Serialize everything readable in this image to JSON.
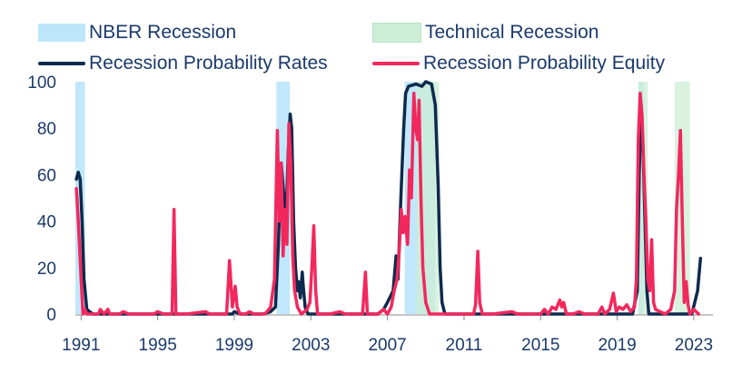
{
  "chart_data": {
    "type": "line",
    "legend": [
      {
        "label": "NBER Recession",
        "kind": "band",
        "color": "#bde6fb"
      },
      {
        "label": "Technical Recession",
        "kind": "band",
        "color": "#cdeed6"
      },
      {
        "label": "Recession Probability Rates",
        "kind": "line",
        "color": "#0e2a4d"
      },
      {
        "label": "Recession Probability Equity",
        "kind": "line",
        "color": "#f2285d"
      }
    ],
    "x_ticks": [
      "1991",
      "1995",
      "1999",
      "2003",
      "2007",
      "2011",
      "2015",
      "2019",
      "2023"
    ],
    "y_ticks": [
      "0",
      "20",
      "40",
      "60",
      "80",
      "100"
    ],
    "xlim": [
      1990.7,
      2024.0
    ],
    "ylim": [
      0,
      100
    ],
    "bands": [
      {
        "kind": "nber",
        "start": 1990.7,
        "end": 1991.2
      },
      {
        "kind": "nber",
        "start": 2001.2,
        "end": 2001.9
      },
      {
        "kind": "nber",
        "start": 2007.9,
        "end": 2009.5
      },
      {
        "kind": "nber",
        "start": 2020.1,
        "end": 2020.4
      },
      {
        "kind": "technical",
        "start": 2008.5,
        "end": 2009.7
      },
      {
        "kind": "technical",
        "start": 2020.1,
        "end": 2020.6
      },
      {
        "kind": "technical",
        "start": 2022.0,
        "end": 2022.8
      }
    ],
    "series": [
      {
        "name": "Recession Probability Rates",
        "color": "#0e2a4d",
        "points": [
          [
            1990.75,
            58
          ],
          [
            1990.85,
            61
          ],
          [
            1990.95,
            58
          ],
          [
            1991.05,
            40
          ],
          [
            1991.15,
            15
          ],
          [
            1991.3,
            2
          ],
          [
            1991.6,
            0
          ],
          [
            1998.9,
            0
          ],
          [
            1999.0,
            1
          ],
          [
            1999.3,
            0
          ],
          [
            2000.5,
            0
          ],
          [
            2000.9,
            1
          ],
          [
            2001.15,
            3
          ],
          [
            2001.3,
            30
          ],
          [
            2001.45,
            65
          ],
          [
            2001.55,
            55
          ],
          [
            2001.7,
            40
          ],
          [
            2001.82,
            70
          ],
          [
            2001.92,
            86
          ],
          [
            2002.0,
            80
          ],
          [
            2002.1,
            40
          ],
          [
            2002.2,
            20
          ],
          [
            2002.3,
            10
          ],
          [
            2002.35,
            14
          ],
          [
            2002.45,
            7
          ],
          [
            2002.55,
            18
          ],
          [
            2002.6,
            12
          ],
          [
            2002.7,
            3
          ],
          [
            2002.85,
            0
          ],
          [
            2006.5,
            0
          ],
          [
            2006.8,
            2
          ],
          [
            2007.0,
            5
          ],
          [
            2007.3,
            10
          ],
          [
            2007.45,
            25
          ],
          [
            2007.55,
            15
          ],
          [
            2007.7,
            50
          ],
          [
            2007.85,
            80
          ],
          [
            2007.95,
            95
          ],
          [
            2008.1,
            98
          ],
          [
            2008.5,
            99
          ],
          [
            2008.8,
            98
          ],
          [
            2009.0,
            100
          ],
          [
            2009.3,
            99
          ],
          [
            2009.5,
            90
          ],
          [
            2009.65,
            55
          ],
          [
            2009.75,
            20
          ],
          [
            2009.85,
            5
          ],
          [
            2010.0,
            0
          ],
          [
            2019.8,
            0
          ],
          [
            2020.05,
            10
          ],
          [
            2020.15,
            60
          ],
          [
            2020.25,
            90
          ],
          [
            2020.35,
            70
          ],
          [
            2020.45,
            40
          ],
          [
            2020.55,
            10
          ],
          [
            2020.65,
            0
          ],
          [
            2022.6,
            0
          ],
          [
            2022.9,
            0
          ],
          [
            2023.2,
            10
          ],
          [
            2023.35,
            24
          ]
        ]
      },
      {
        "name": "Recession Probability Equity",
        "color": "#f2285d",
        "points": [
          [
            1990.75,
            54
          ],
          [
            1990.85,
            40
          ],
          [
            1991.0,
            15
          ],
          [
            1991.1,
            0
          ],
          [
            1991.2,
            2
          ],
          [
            1991.3,
            0
          ],
          [
            1991.9,
            0
          ],
          [
            1992.0,
            2
          ],
          [
            1992.2,
            0
          ],
          [
            1992.4,
            2
          ],
          [
            1992.5,
            0
          ],
          [
            1993.0,
            0
          ],
          [
            1993.2,
            1
          ],
          [
            1993.5,
            0
          ],
          [
            1994.8,
            0
          ],
          [
            1995.0,
            1
          ],
          [
            1995.3,
            0
          ],
          [
            1995.75,
            0
          ],
          [
            1995.85,
            45
          ],
          [
            1995.95,
            0
          ],
          [
            1996.5,
            0
          ],
          [
            1997.5,
            1
          ],
          [
            1997.7,
            0
          ],
          [
            1998.6,
            0
          ],
          [
            1998.75,
            23
          ],
          [
            1998.9,
            3
          ],
          [
            1999.05,
            12
          ],
          [
            1999.15,
            3
          ],
          [
            1999.3,
            0
          ],
          [
            1999.6,
            0
          ],
          [
            1999.8,
            1
          ],
          [
            2000.0,
            0
          ],
          [
            2000.6,
            0
          ],
          [
            2000.9,
            3
          ],
          [
            2001.1,
            15
          ],
          [
            2001.25,
            79
          ],
          [
            2001.35,
            40
          ],
          [
            2001.45,
            65
          ],
          [
            2001.55,
            25
          ],
          [
            2001.65,
            45
          ],
          [
            2001.75,
            30
          ],
          [
            2001.85,
            82
          ],
          [
            2001.95,
            65
          ],
          [
            2002.05,
            25
          ],
          [
            2002.15,
            10
          ],
          [
            2002.3,
            3
          ],
          [
            2002.5,
            0
          ],
          [
            2002.8,
            2
          ],
          [
            2002.95,
            5
          ],
          [
            2003.05,
            20
          ],
          [
            2003.15,
            38
          ],
          [
            2003.25,
            10
          ],
          [
            2003.35,
            0
          ],
          [
            2004.0,
            0
          ],
          [
            2004.5,
            1
          ],
          [
            2004.8,
            0
          ],
          [
            2005.7,
            0
          ],
          [
            2005.85,
            18
          ],
          [
            2005.95,
            0
          ],
          [
            2006.5,
            0
          ],
          [
            2006.8,
            2
          ],
          [
            2007.0,
            0
          ],
          [
            2007.2,
            3
          ],
          [
            2007.35,
            10
          ],
          [
            2007.5,
            15
          ],
          [
            2007.62,
            28
          ],
          [
            2007.72,
            45
          ],
          [
            2007.82,
            35
          ],
          [
            2007.92,
            42
          ],
          [
            2008.05,
            30
          ],
          [
            2008.15,
            62
          ],
          [
            2008.25,
            50
          ],
          [
            2008.38,
            95
          ],
          [
            2008.48,
            80
          ],
          [
            2008.58,
            75
          ],
          [
            2008.65,
            92
          ],
          [
            2008.75,
            50
          ],
          [
            2008.85,
            20
          ],
          [
            2009.0,
            5
          ],
          [
            2009.2,
            0
          ],
          [
            2011.5,
            0
          ],
          [
            2011.6,
            4
          ],
          [
            2011.72,
            27
          ],
          [
            2011.82,
            5
          ],
          [
            2011.95,
            0
          ],
          [
            2012.5,
            0
          ],
          [
            2013.5,
            1
          ],
          [
            2013.8,
            0
          ],
          [
            2015.0,
            0
          ],
          [
            2015.2,
            2
          ],
          [
            2015.4,
            0
          ],
          [
            2015.6,
            3
          ],
          [
            2015.8,
            2
          ],
          [
            2016.0,
            6
          ],
          [
            2016.1,
            3
          ],
          [
            2016.2,
            5
          ],
          [
            2016.35,
            0
          ],
          [
            2016.7,
            0
          ],
          [
            2017.0,
            1
          ],
          [
            2017.3,
            0
          ],
          [
            2018.0,
            0
          ],
          [
            2018.2,
            3
          ],
          [
            2018.35,
            0
          ],
          [
            2018.6,
            2
          ],
          [
            2018.8,
            9
          ],
          [
            2018.95,
            1
          ],
          [
            2019.1,
            3
          ],
          [
            2019.3,
            2
          ],
          [
            2019.5,
            4
          ],
          [
            2019.7,
            1
          ],
          [
            2019.9,
            3
          ],
          [
            2020.0,
            15
          ],
          [
            2020.1,
            75
          ],
          [
            2020.2,
            95
          ],
          [
            2020.3,
            85
          ],
          [
            2020.4,
            60
          ],
          [
            2020.5,
            40
          ],
          [
            2020.6,
            15
          ],
          [
            2020.7,
            10
          ],
          [
            2020.8,
            32
          ],
          [
            2020.9,
            5
          ],
          [
            2021.0,
            2
          ],
          [
            2021.5,
            0
          ],
          [
            2021.8,
            2
          ],
          [
            2022.0,
            10
          ],
          [
            2022.1,
            45
          ],
          [
            2022.2,
            60
          ],
          [
            2022.3,
            79
          ],
          [
            2022.4,
            40
          ],
          [
            2022.5,
            5
          ],
          [
            2022.6,
            14
          ],
          [
            2022.7,
            4
          ],
          [
            2022.8,
            0
          ],
          [
            2023.0,
            2
          ],
          [
            2023.25,
            0
          ]
        ]
      }
    ]
  }
}
